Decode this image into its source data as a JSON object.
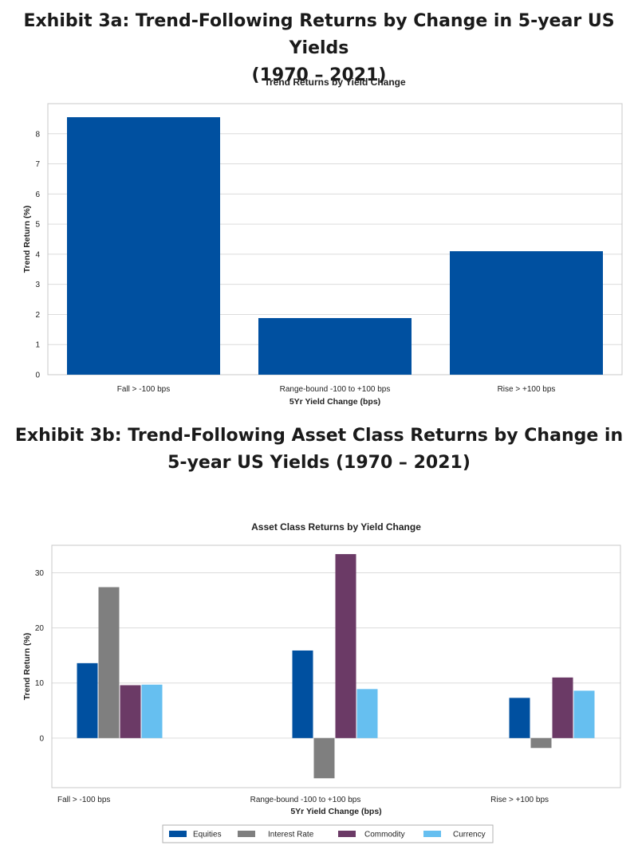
{
  "exhibit_a": {
    "title_line1": "Exhibit 3a: Trend-Following Returns by Change in 5-year US Yields",
    "title_line2": "(1970 – 2021)"
  },
  "exhibit_b": {
    "title_line1": "Exhibit 3b: Trend-Following Asset Class Returns by Change in",
    "title_line2": "5-year  US Yields (1970 – 2021)"
  },
  "chart_data": [
    {
      "type": "bar",
      "title": "Trend Returns by Yield Change",
      "xlabel": "5Yr Yield Change (bps)",
      "ylabel": "Trend Return (%)",
      "categories": [
        "Fall > -100 bps",
        "Range-bound -100 to +100 bps",
        "Rise > +100 bps"
      ],
      "values": [
        8.55,
        1.88,
        4.1
      ],
      "ylim": [
        0,
        9
      ],
      "yticks": [
        0,
        1,
        2,
        3,
        4,
        5,
        6,
        7,
        8
      ],
      "color": "#0050A0",
      "grid": true
    },
    {
      "type": "bar",
      "title": "Asset Class Returns by Yield Change",
      "xlabel": "5Yr Yield Change (bps)",
      "ylabel": "Trend Return (%)",
      "categories": [
        "Fall > -100 bps",
        "Range-bound -100 to +100 bps",
        "Rise > +100 bps"
      ],
      "series": [
        {
          "name": "Equities",
          "color": "#0050A0",
          "values": [
            13.6,
            15.9,
            7.3
          ]
        },
        {
          "name": "Interest Rate",
          "color": "#7F7F7F",
          "values": [
            27.4,
            -7.3,
            -1.8
          ]
        },
        {
          "name": "Commodity",
          "color": "#6B3A66",
          "values": [
            9.6,
            33.4,
            11.0
          ]
        },
        {
          "name": "Currency",
          "color": "#66BFF0",
          "values": [
            9.7,
            8.9,
            8.6
          ]
        }
      ],
      "ylim": [
        -9,
        35
      ],
      "yticks": [
        0,
        10,
        20,
        30
      ],
      "legend": "bottom-center",
      "grid": true
    }
  ]
}
